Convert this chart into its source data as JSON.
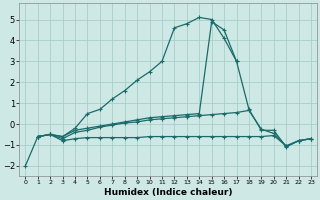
{
  "xlabel": "Humidex (Indice chaleur)",
  "bg_color": "#cde8e5",
  "grid_color": "#a8ceca",
  "line_color": "#1a6b6a",
  "xlim": [
    -0.5,
    23.5
  ],
  "ylim": [
    -2.5,
    5.8
  ],
  "yticks": [
    -2,
    -1,
    0,
    1,
    2,
    3,
    4,
    5
  ],
  "xticks": [
    0,
    1,
    2,
    3,
    4,
    5,
    6,
    7,
    8,
    9,
    10,
    11,
    12,
    13,
    14,
    15,
    16,
    17,
    18,
    19,
    20,
    21,
    22,
    23
  ],
  "lines": [
    {
      "x": [
        0,
        1,
        2,
        3,
        4,
        5,
        6,
        7,
        8,
        9,
        10,
        11,
        12,
        13,
        14,
        15,
        16,
        17
      ],
      "y": [
        -2.0,
        -0.6,
        -0.5,
        -0.6,
        -0.2,
        0.5,
        0.7,
        1.2,
        1.6,
        2.1,
        2.5,
        3.0,
        4.6,
        4.8,
        5.1,
        5.0,
        4.1,
        3.0
      ]
    },
    {
      "x": [
        1,
        2,
        3,
        4,
        5,
        6,
        7,
        8,
        9,
        10,
        11,
        12,
        13,
        14,
        15,
        16,
        17,
        18,
        19,
        20,
        21,
        22,
        23
      ],
      "y": [
        -0.6,
        -0.5,
        -0.6,
        -0.3,
        -0.2,
        -0.1,
        0.0,
        0.1,
        0.2,
        0.3,
        0.35,
        0.4,
        0.45,
        0.5,
        4.9,
        4.5,
        3.0,
        0.7,
        -0.3,
        -0.3,
        -1.1,
        -0.8,
        -0.7
      ]
    },
    {
      "x": [
        1,
        2,
        3,
        4,
        5,
        6,
        7,
        8,
        9,
        10,
        11,
        12,
        13,
        14,
        15,
        16,
        17,
        18,
        19,
        20,
        21,
        22,
        23
      ],
      "y": [
        -0.6,
        -0.5,
        -0.8,
        -0.7,
        -0.65,
        -0.65,
        -0.65,
        -0.65,
        -0.65,
        -0.6,
        -0.6,
        -0.6,
        -0.6,
        -0.6,
        -0.6,
        -0.6,
        -0.6,
        -0.6,
        -0.6,
        -0.55,
        -1.05,
        -0.8,
        -0.7
      ]
    },
    {
      "x": [
        1,
        2,
        3,
        4,
        5,
        6,
        7,
        8,
        9,
        10,
        11,
        12,
        13,
        14,
        15,
        16,
        17,
        18,
        19,
        20,
        21,
        22,
        23
      ],
      "y": [
        -0.6,
        -0.5,
        -0.7,
        -0.4,
        -0.3,
        -0.15,
        -0.05,
        0.05,
        0.1,
        0.2,
        0.25,
        0.3,
        0.35,
        0.4,
        0.45,
        0.5,
        0.55,
        0.65,
        -0.25,
        -0.45,
        -1.05,
        -0.8,
        -0.7
      ]
    }
  ]
}
